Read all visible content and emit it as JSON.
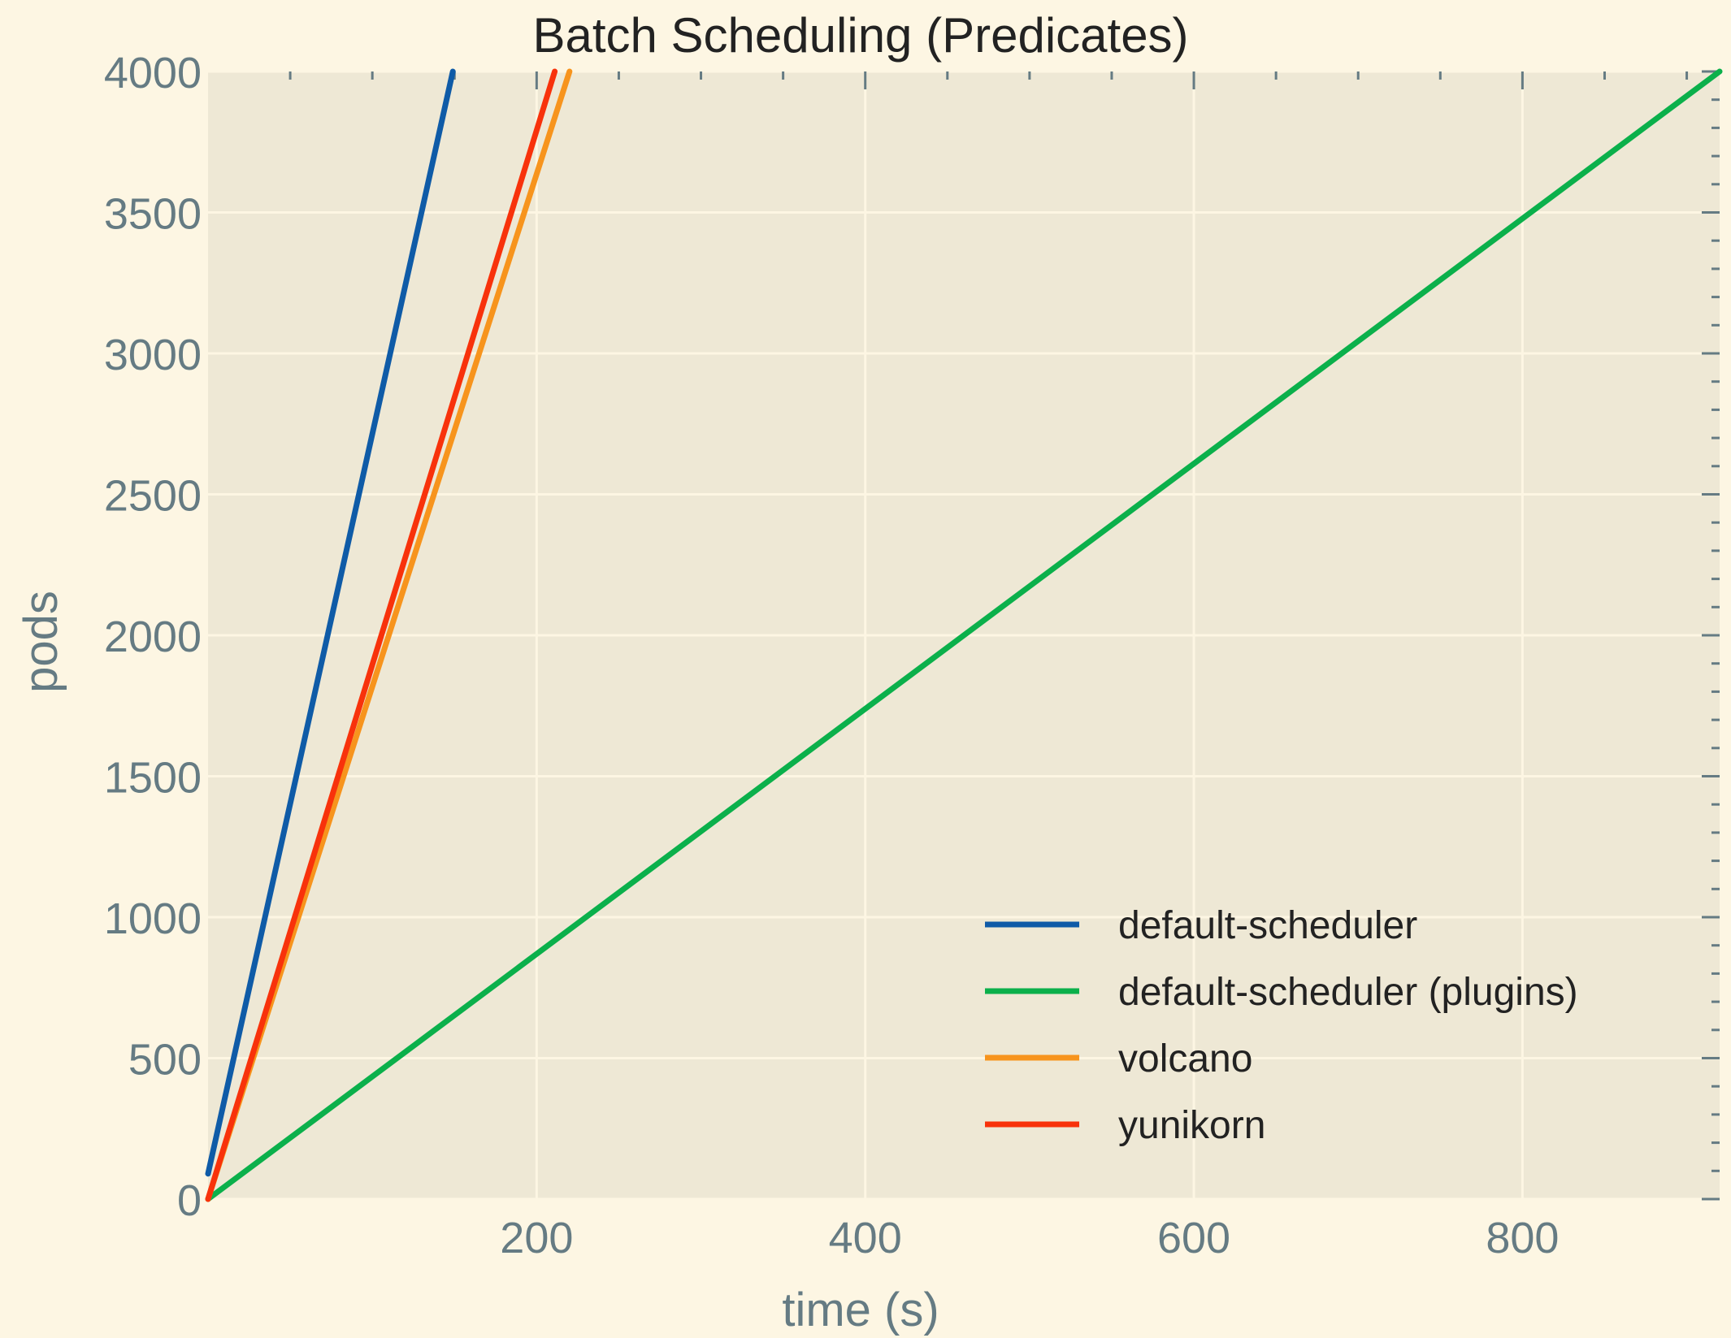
{
  "chart_data": {
    "type": "line",
    "title": "Batch Scheduling (Predicates)",
    "xlabel": "time (s)",
    "ylabel": "pods",
    "xlim": [
      0,
      920
    ],
    "ylim": [
      0,
      4000
    ],
    "x_ticks": [
      200,
      400,
      600,
      800
    ],
    "y_ticks": [
      0,
      500,
      1000,
      1500,
      2000,
      2500,
      3000,
      3500,
      4000
    ],
    "x_tick_labels": [
      "200",
      "400",
      "600",
      "800"
    ],
    "y_tick_labels": [
      "0",
      "500",
      "1000",
      "1500",
      "2000",
      "2500",
      "3000",
      "3500",
      "4000"
    ],
    "grid": true,
    "legend_position": "bottom-right",
    "colors": {
      "background": "#fdf6e3",
      "plot_area": "#eee8d5",
      "grid": "#fdf6e3",
      "tick": "#657b83"
    },
    "series": [
      {
        "name": "default-scheduler",
        "color": "#0f5ba7",
        "x": [
          0,
          149
        ],
        "y": [
          90,
          4000
        ]
      },
      {
        "name": "default-scheduler (plugins)",
        "color": "#0bb04b",
        "x": [
          0,
          920
        ],
        "y": [
          0,
          4000
        ]
      },
      {
        "name": "volcano",
        "color": "#f7941d",
        "x": [
          0,
          220
        ],
        "y": [
          0,
          4000
        ]
      },
      {
        "name": "yunikorn",
        "color": "#f8320b",
        "x": [
          0,
          211
        ],
        "y": [
          0,
          4000
        ]
      }
    ]
  }
}
